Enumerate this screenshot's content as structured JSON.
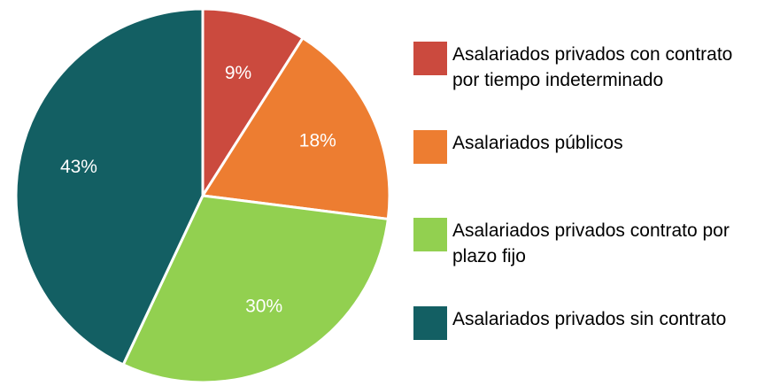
{
  "chart_data": {
    "type": "pie",
    "categories": [
      "Asalariados privados con contrato por tiempo indeterminado",
      "Asalariados públicos",
      "Asalariados privados contrato por plazo fijo",
      "Asalariados privados sin contrato"
    ],
    "values": [
      9,
      18,
      30,
      43
    ],
    "value_labels": [
      "9%",
      "18%",
      "30%",
      "43%"
    ],
    "colors": [
      "#cb4a3e",
      "#ed7d31",
      "#92d050",
      "#135f63"
    ]
  }
}
